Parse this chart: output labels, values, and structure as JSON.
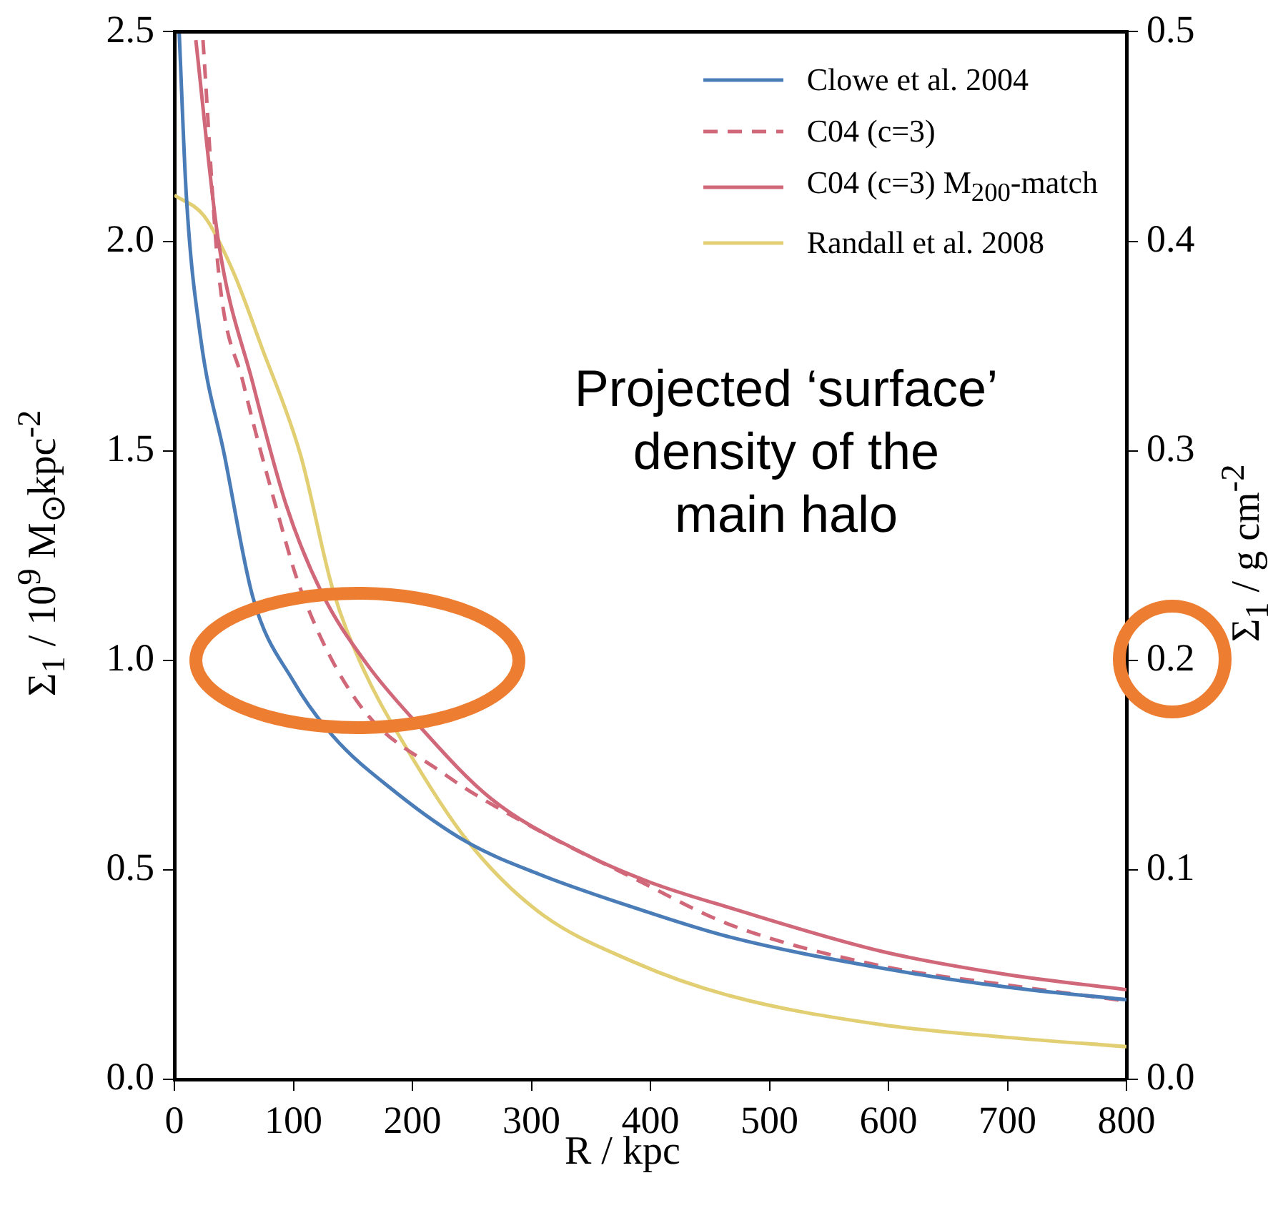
{
  "chart_data": {
    "type": "line",
    "xlabel": "R / kpc",
    "ylabel": "Σ$_{1}$ / 10$^{9}$ M$_{⊙}$kpc$^{-2}$",
    "y2label": "Σ$_{1}$ / g cm$^{-2}$",
    "xlim": [
      0,
      800
    ],
    "xticks": [
      0,
      100,
      200,
      300,
      400,
      500,
      600,
      700,
      800
    ],
    "ylim": [
      0,
      2.5
    ],
    "yticks": [
      {
        "value": 0,
        "label": "0.0"
      },
      {
        "value": 0.5,
        "label": "0.5"
      },
      {
        "value": 1,
        "label": "1.0"
      },
      {
        "value": 1.5,
        "label": "1.5"
      },
      {
        "value": 2,
        "label": "2.0"
      },
      {
        "value": 2.5,
        "label": "2.5"
      }
    ],
    "y2lim": [
      0,
      0.5
    ],
    "y2ticks": [
      {
        "value": 0,
        "label": "0.0"
      },
      {
        "value": 0.1,
        "label": "0.1"
      },
      {
        "value": 0.2,
        "label": "0.2"
      },
      {
        "value": 0.3,
        "label": "0.3"
      },
      {
        "value": 0.4,
        "label": "0.4"
      },
      {
        "value": 0.5,
        "label": "0.5"
      }
    ],
    "legend": "top right",
    "annotations": [
      "Projected ‘surface’ density of the main halo"
    ],
    "series": [
      {
        "name": "Clowe et al. 2004",
        "color": "#4a7db8",
        "x": [
          4,
          10,
          22,
          42,
          66,
          100,
          133,
          186,
          246,
          306,
          386,
          466,
          595,
          700,
          800
        ],
        "values": [
          2.5,
          2.11,
          1.77,
          1.49,
          1.15,
          0.95,
          0.82,
          0.685,
          0.566,
          0.49,
          0.41,
          0.34,
          0.265,
          0.22,
          0.19
        ]
      },
      {
        "name": "C04 (c=3)",
        "color": "#d0687a",
        "line_style": "dashed",
        "x": [
          24,
          37,
          58,
          85,
          106,
          154,
          226,
          306,
          386,
          466,
          595,
          700,
          800
        ],
        "values": [
          2.48,
          1.93,
          1.66,
          1.37,
          1.17,
          0.9,
          0.73,
          0.594,
          0.48,
          0.37,
          0.27,
          0.225,
          0.187
        ]
      },
      {
        "name": "C04 (c=3) M$_{200}$-match",
        "color": "#d0687a",
        "x": [
          18,
          37,
          66,
          94,
          124,
          162,
          202,
          266,
          346,
          400,
          466,
          595,
          700,
          800
        ],
        "values": [
          2.48,
          2.0,
          1.66,
          1.37,
          1.16,
          0.99,
          0.855,
          0.67,
          0.536,
          0.47,
          0.41,
          0.305,
          0.25,
          0.214
        ]
      },
      {
        "name": "Randall et al. 2008",
        "color": "#e2cf73",
        "x": [
          0,
          25,
          49,
          73,
          106,
          133,
          157,
          193,
          246,
          306,
          386,
          466,
          595,
          700,
          800
        ],
        "values": [
          2.11,
          2.06,
          1.93,
          1.75,
          1.49,
          1.17,
          0.99,
          0.8,
          0.57,
          0.4,
          0.28,
          0.2,
          0.13,
          0.1,
          0.078
        ]
      }
    ]
  }
}
